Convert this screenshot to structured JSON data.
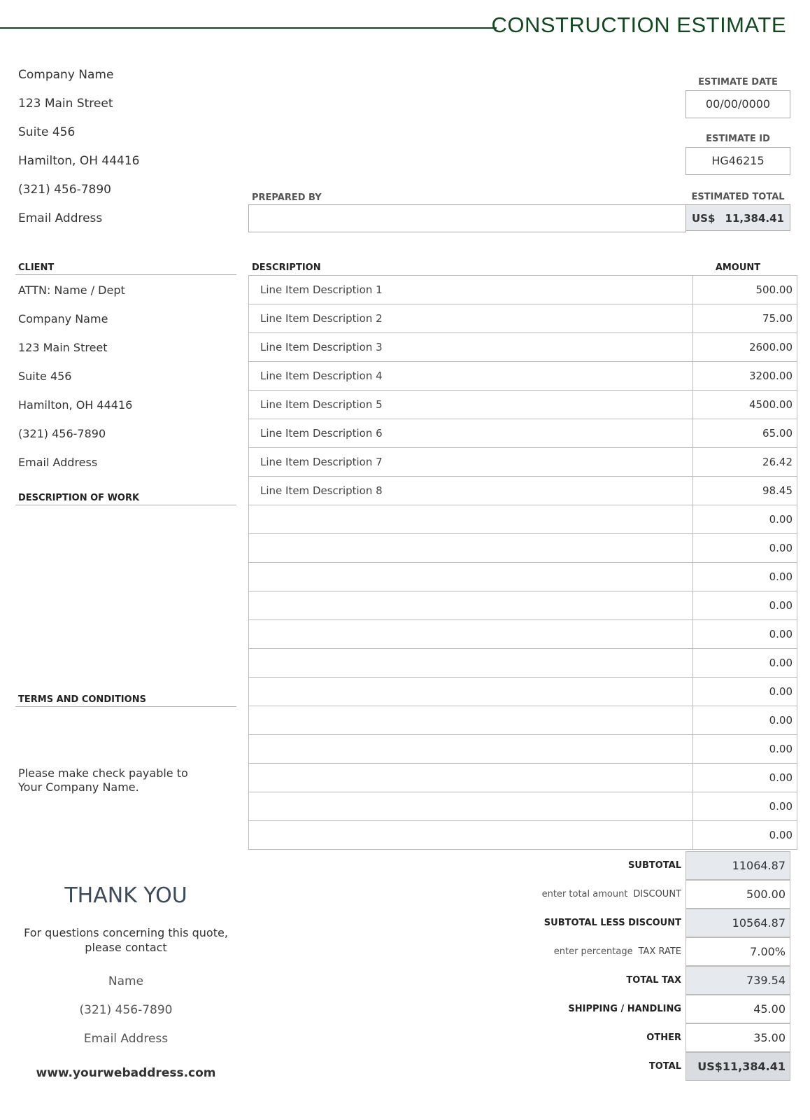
{
  "title": "CONSTRUCTION ESTIMATE",
  "company": [
    "Company Name",
    "123 Main Street",
    "Suite 456",
    "Hamilton, OH  44416",
    "(321) 456-7890",
    "Email Address"
  ],
  "estimate_date": {
    "label": "ESTIMATE DATE",
    "value": "00/00/0000"
  },
  "estimate_id": {
    "label": "ESTIMATE ID",
    "value": "HG46215"
  },
  "estimated_total": {
    "label": "ESTIMATED TOTAL",
    "currency": "US$",
    "value": "11,384.41"
  },
  "prepared_by": {
    "label": "PREPARED BY",
    "value": ""
  },
  "client": {
    "label": "CLIENT",
    "lines": [
      "ATTN: Name / Dept",
      "Company Name",
      "123 Main Street",
      "Suite 456",
      "Hamilton, OH  44416",
      "(321) 456-7890",
      "Email Address"
    ]
  },
  "description_of_work": {
    "label": "DESCRIPTION OF WORK"
  },
  "terms": {
    "label": "TERMS AND CONDITIONS",
    "text": "Please make check payable to\nYour Company Name."
  },
  "table": {
    "headers": [
      "DESCRIPTION",
      "AMOUNT"
    ],
    "rows": [
      [
        "Line Item Description 1",
        "500.00"
      ],
      [
        "Line Item Description 2",
        "75.00"
      ],
      [
        "Line Item Description 3",
        "2600.00"
      ],
      [
        "Line Item Description 4",
        "3200.00"
      ],
      [
        "Line Item Description 5",
        "4500.00"
      ],
      [
        "Line Item Description 6",
        "65.00"
      ],
      [
        "Line Item Description 7",
        "26.42"
      ],
      [
        "Line Item Description 8",
        "98.45"
      ],
      [
        "",
        "0.00"
      ],
      [
        "",
        "0.00"
      ],
      [
        "",
        "0.00"
      ],
      [
        "",
        "0.00"
      ],
      [
        "",
        "0.00"
      ],
      [
        "",
        "0.00"
      ],
      [
        "",
        "0.00"
      ],
      [
        "",
        "0.00"
      ],
      [
        "",
        "0.00"
      ],
      [
        "",
        "0.00"
      ],
      [
        "",
        "0.00"
      ],
      [
        "",
        "0.00"
      ]
    ]
  },
  "totals": [
    {
      "hint": "",
      "label": "SUBTOTAL",
      "value": "11064.87",
      "shaded": true
    },
    {
      "hint": "enter total amount",
      "label": "DISCOUNT",
      "value": "500.00",
      "shaded": false
    },
    {
      "hint": "",
      "label": "SUBTOTAL LESS DISCOUNT",
      "value": "10564.87",
      "shaded": true
    },
    {
      "hint": "enter percentage",
      "label": "TAX RATE",
      "value": "7.00%",
      "shaded": false
    },
    {
      "hint": "",
      "label": "TOTAL TAX",
      "value": "739.54",
      "shaded": true
    },
    {
      "hint": "",
      "label": "SHIPPING / HANDLING",
      "value": "45.00",
      "shaded": false
    },
    {
      "hint": "",
      "label": "OTHER",
      "value": "35.00",
      "shaded": false
    },
    {
      "hint": "",
      "label": "TOTAL",
      "value": "US$11,384.41",
      "shaded": true
    }
  ],
  "thanks": {
    "heading": "THANK YOU",
    "text": "For questions concerning this quote,\nplease contact",
    "name": "Name",
    "phone": "(321) 456-7890",
    "email": "Email Address",
    "website": "www.yourwebaddress.com"
  },
  "colors": {
    "accent": "#0f4a1f",
    "shade": "#e6e9ee"
  }
}
